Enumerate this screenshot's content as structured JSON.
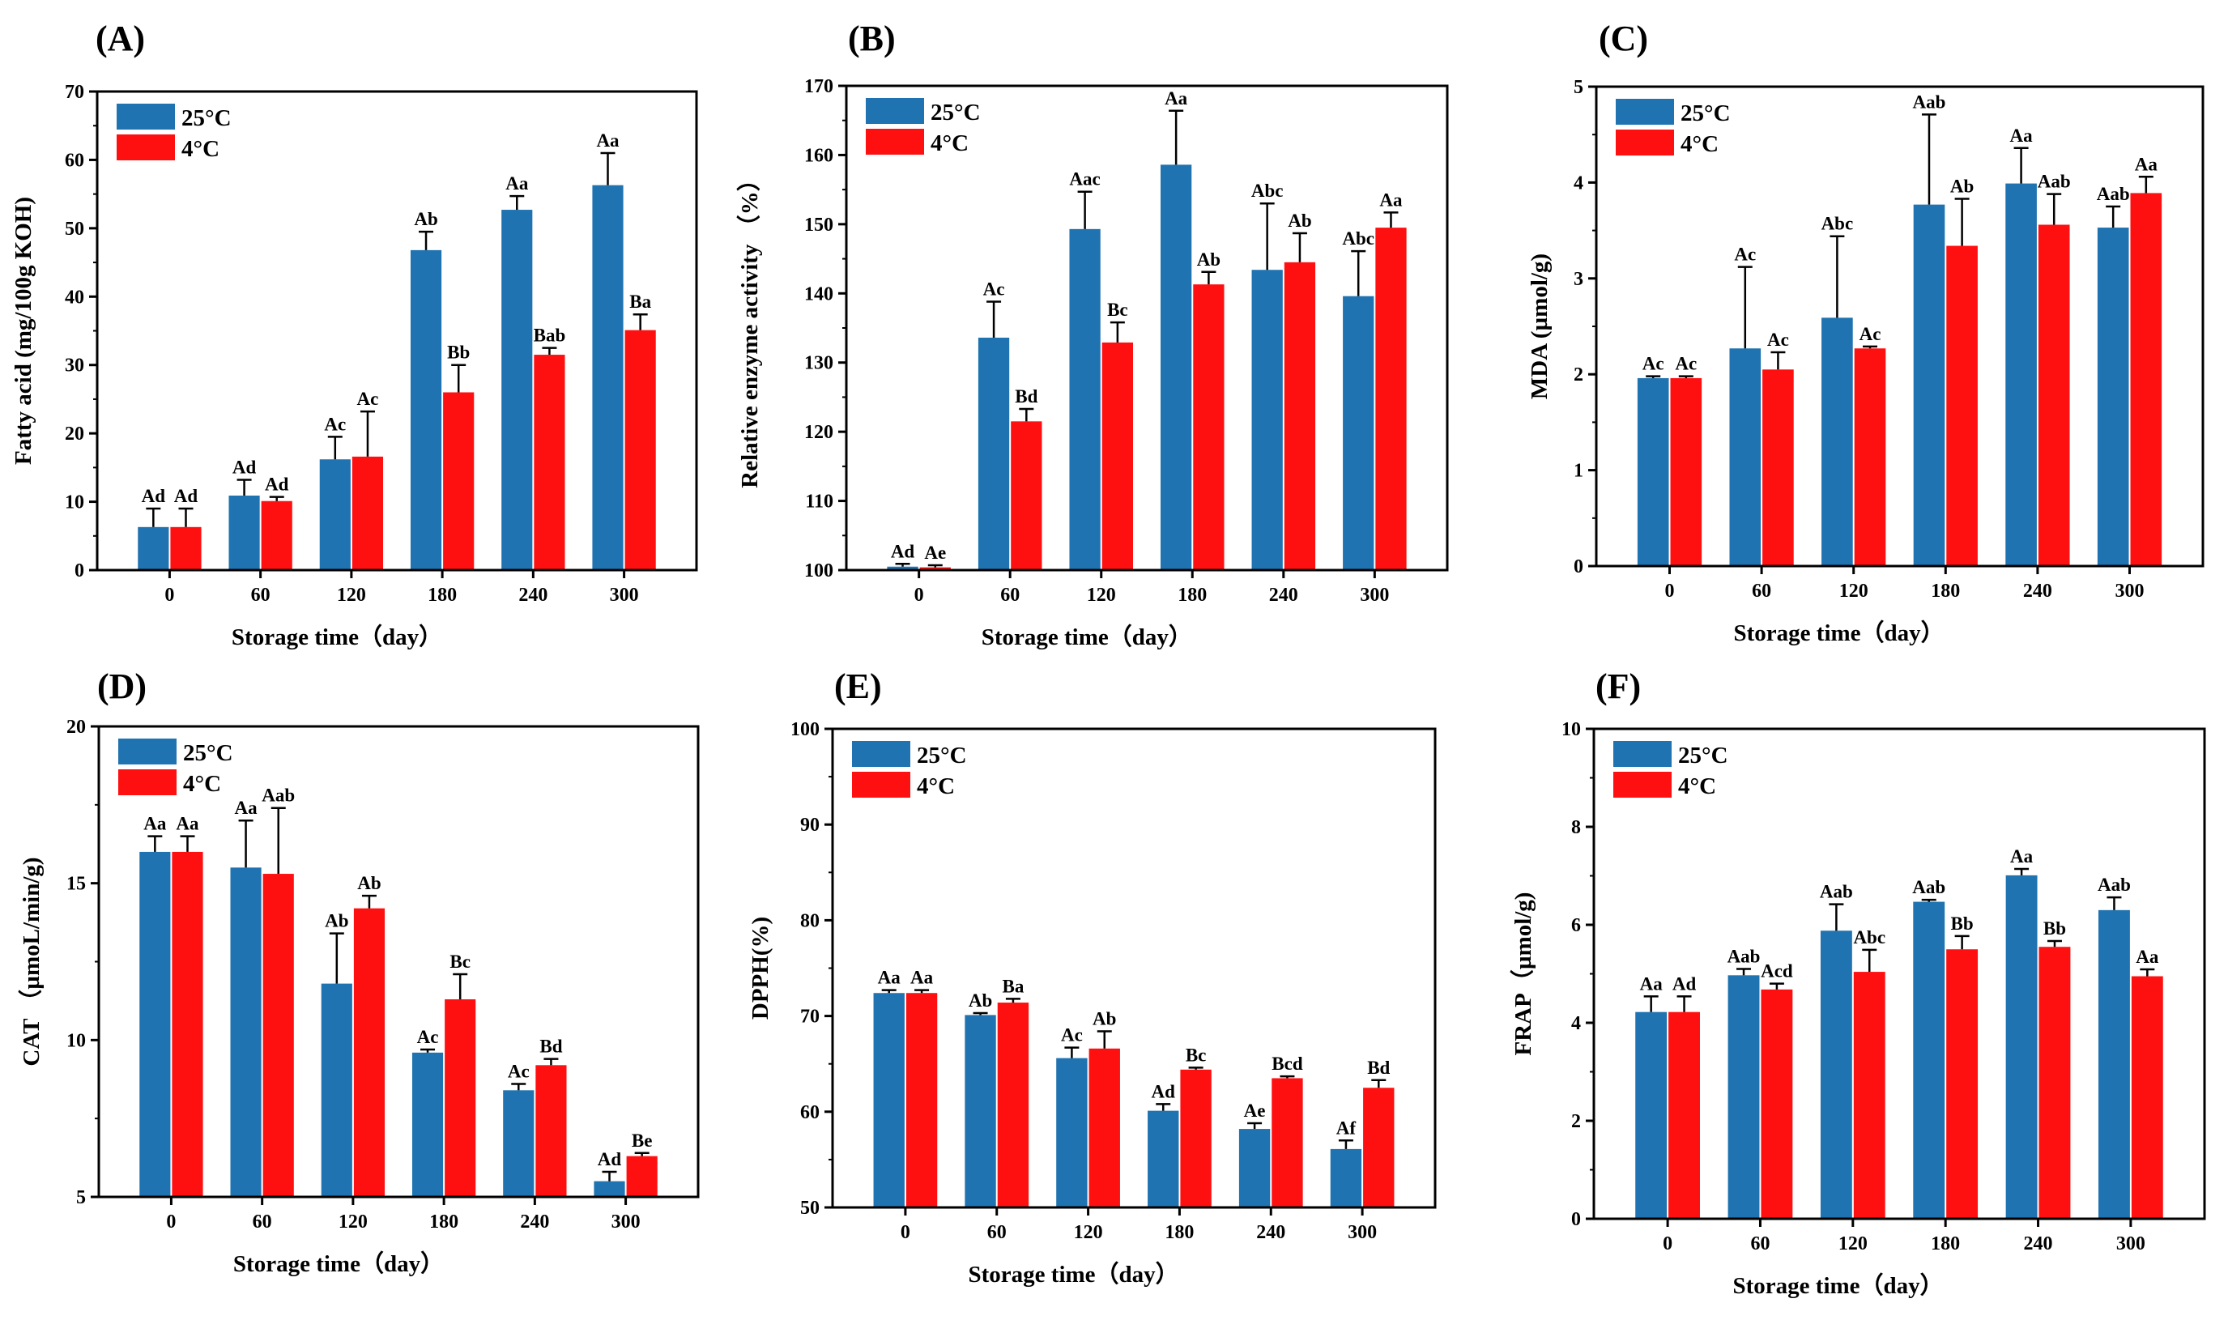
{
  "colors": {
    "series_25C": "#1f73b0",
    "series_4C": "#ff1010",
    "axis": "#000000"
  },
  "chart_data": [
    {
      "panel": "(A)",
      "type": "bar",
      "title": "",
      "xlabel": "Storage time（day）",
      "ylabel": "Fatty acid (mg/100g KOH)",
      "categories": [
        "0",
        "60",
        "120",
        "180",
        "240",
        "300"
      ],
      "ylim": [
        0,
        70
      ],
      "yticks": [
        "0",
        "10",
        "20",
        "30",
        "40",
        "50",
        "60",
        "70"
      ],
      "legend": "top-left",
      "series": [
        {
          "name": "25°C",
          "values": [
            6.3,
            10.9,
            16.2,
            46.8,
            52.7,
            56.3
          ],
          "errors": [
            2.7,
            2.3,
            3.3,
            2.7,
            2.0,
            4.7
          ],
          "labels": [
            "Ad",
            "Ad",
            "Ac",
            "Ab",
            "Aa",
            "Aa"
          ]
        },
        {
          "name": "4°C",
          "values": [
            6.3,
            10.1,
            16.6,
            26.0,
            31.5,
            35.1
          ],
          "errors": [
            2.7,
            0.6,
            6.6,
            4.0,
            1.0,
            2.3
          ],
          "labels": [
            "Ad",
            "Ad",
            "Ac",
            "Bb",
            "Bab",
            "Ba"
          ]
        }
      ]
    },
    {
      "panel": "(B)",
      "type": "bar",
      "title": "",
      "xlabel": "Storage time（day）",
      "ylabel": "Relative enzyme activity （%）",
      "categories": [
        "0",
        "60",
        "120",
        "180",
        "240",
        "300"
      ],
      "ylim": [
        100,
        170
      ],
      "yticks": [
        "100",
        "110",
        "120",
        "130",
        "140",
        "150",
        "160",
        "170"
      ],
      "legend": "top-left",
      "series": [
        {
          "name": "25°C",
          "values": [
            100.5,
            133.6,
            149.3,
            158.6,
            143.4,
            139.6
          ],
          "errors": [
            0.4,
            5.2,
            5.4,
            7.8,
            9.6,
            6.5
          ],
          "labels": [
            "Ad",
            "Ac",
            "Aac",
            "Aa",
            "Abc",
            "Abc"
          ]
        },
        {
          "name": "4°C",
          "values": [
            100.4,
            121.5,
            132.9,
            141.3,
            144.5,
            149.5
          ],
          "errors": [
            0.3,
            1.8,
            2.9,
            1.8,
            4.2,
            2.2
          ],
          "labels": [
            "Ae",
            "Bd",
            "Bc",
            "Ab",
            "Ab",
            "Aa"
          ]
        }
      ]
    },
    {
      "panel": "(C)",
      "type": "bar",
      "title": "",
      "xlabel": "Storage time（day）",
      "ylabel": "MDA (µmol/g)",
      "categories": [
        "0",
        "60",
        "120",
        "180",
        "240",
        "300"
      ],
      "ylim": [
        0,
        5
      ],
      "yticks": [
        "0",
        "1",
        "2",
        "3",
        "4",
        "5"
      ],
      "legend": "top-left",
      "series": [
        {
          "name": "25°C",
          "values": [
            1.96,
            2.27,
            2.59,
            3.77,
            3.99,
            3.53
          ],
          "errors": [
            0.02,
            0.85,
            0.85,
            0.94,
            0.37,
            0.22
          ],
          "labels": [
            "Ac",
            "Ac",
            "Abc",
            "Aab",
            "Aa",
            "Aab"
          ]
        },
        {
          "name": "4°C",
          "values": [
            1.96,
            2.05,
            2.27,
            3.34,
            3.56,
            3.89
          ],
          "errors": [
            0.02,
            0.18,
            0.02,
            0.49,
            0.32,
            0.17
          ],
          "labels": [
            "Ac",
            "Ac",
            "Ac",
            "Ab",
            "Aab",
            "Aa"
          ]
        }
      ]
    },
    {
      "panel": "(D)",
      "type": "bar",
      "title": "",
      "xlabel": "Storage time（day）",
      "ylabel": "CAT （µmoL/min/g)",
      "categories": [
        "0",
        "60",
        "120",
        "180",
        "240",
        "300"
      ],
      "ylim": [
        5,
        20
      ],
      "yticks": [
        "5",
        "10",
        "15",
        "20"
      ],
      "legend": "top-left",
      "series": [
        {
          "name": "25°C",
          "values": [
            16.0,
            15.5,
            11.8,
            9.6,
            8.4,
            5.5
          ],
          "errors": [
            0.5,
            1.5,
            1.6,
            0.1,
            0.2,
            0.3
          ],
          "labels": [
            "Aa",
            "Aa",
            "Ab",
            "Ac",
            "Ac",
            "Ad"
          ]
        },
        {
          "name": "4°C",
          "values": [
            16.0,
            15.3,
            14.2,
            11.3,
            9.2,
            6.3
          ],
          "errors": [
            0.5,
            2.1,
            0.4,
            0.8,
            0.2,
            0.1
          ],
          "labels": [
            "Aa",
            "Aab",
            "Ab",
            "Bc",
            "Bd",
            "Be"
          ]
        }
      ]
    },
    {
      "panel": "(E)",
      "type": "bar",
      "title": "",
      "xlabel": "Storage time（day）",
      "ylabel": "DPPH(%)",
      "categories": [
        "0",
        "60",
        "120",
        "180",
        "240",
        "300"
      ],
      "ylim": [
        50,
        100
      ],
      "yticks": [
        "50",
        "60",
        "70",
        "80",
        "90",
        "100"
      ],
      "legend": "top-left",
      "series": [
        {
          "name": "25°C",
          "values": [
            72.4,
            70.1,
            65.6,
            60.1,
            58.2,
            56.1
          ],
          "errors": [
            0.3,
            0.2,
            1.1,
            0.7,
            0.6,
            0.9
          ],
          "labels": [
            "Aa",
            "Ab",
            "Ac",
            "Ad",
            "Ae",
            "Af"
          ]
        },
        {
          "name": "4°C",
          "values": [
            72.4,
            71.4,
            66.6,
            64.4,
            63.5,
            62.5
          ],
          "errors": [
            0.3,
            0.4,
            1.8,
            0.2,
            0.2,
            0.8
          ],
          "labels": [
            "Aa",
            "Ba",
            "Ab",
            "Bc",
            "Bcd",
            "Bd"
          ]
        }
      ]
    },
    {
      "panel": "(F)",
      "type": "bar",
      "title": "",
      "xlabel": "Storage time（day）",
      "ylabel": "FRAP（µmol/g)",
      "categories": [
        "0",
        "60",
        "120",
        "180",
        "240",
        "300"
      ],
      "ylim": [
        0,
        10
      ],
      "yticks": [
        "0",
        "2",
        "4",
        "6",
        "8",
        "10"
      ],
      "legend": "top-left",
      "series": [
        {
          "name": "25°C",
          "values": [
            4.22,
            4.97,
            5.88,
            6.47,
            7.01,
            6.3
          ],
          "errors": [
            0.32,
            0.13,
            0.54,
            0.04,
            0.13,
            0.26
          ],
          "labels": [
            "Aa",
            "Aab",
            "Aab",
            "Aab",
            "Aa",
            "Aab"
          ]
        },
        {
          "name": "4°C",
          "values": [
            4.22,
            4.68,
            5.04,
            5.5,
            5.55,
            4.95
          ],
          "errors": [
            0.32,
            0.12,
            0.45,
            0.27,
            0.12,
            0.14
          ],
          "labels": [
            "Ad",
            "Acd",
            "Abc",
            "Bb",
            "Bb",
            "Aa"
          ]
        }
      ]
    }
  ]
}
